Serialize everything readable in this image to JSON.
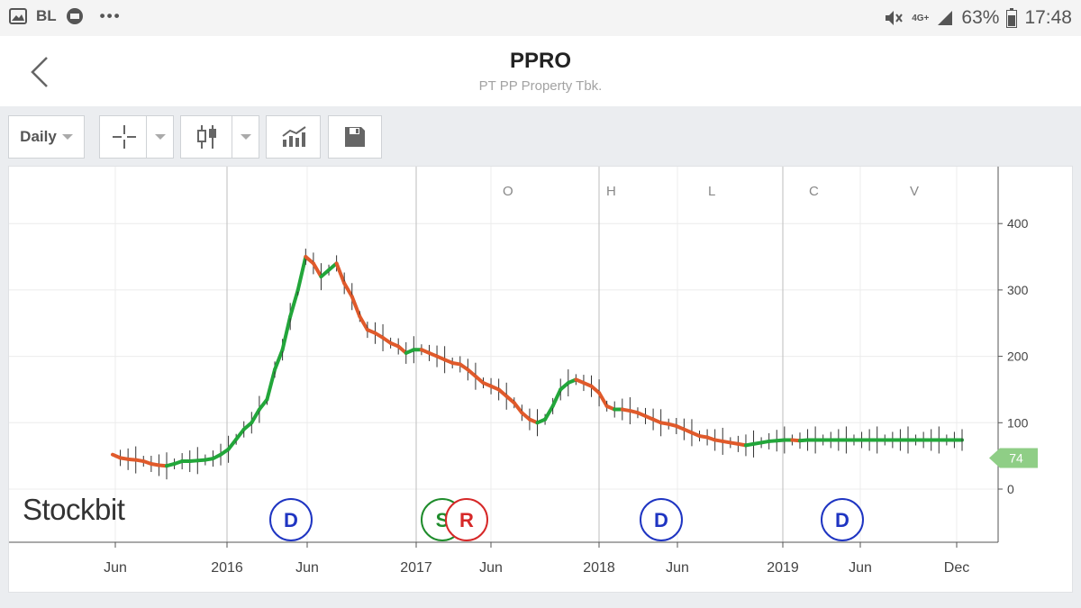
{
  "status_bar": {
    "carrier": "BL",
    "dots": "•••",
    "network": "4G+",
    "battery": "63%",
    "time": "17:48",
    "icons": [
      "gallery-icon",
      "message-icon",
      "mute-icon",
      "signal-icon",
      "battery-icon"
    ]
  },
  "header": {
    "ticker": "PPRO",
    "company": "PT PP Property Tbk.",
    "back_icon": "chevron-left-icon"
  },
  "toolbar": {
    "timeframe": "Daily",
    "crosshair_icon": "crosshair-icon",
    "candle_icon": "candlestick-icon",
    "indicator_icon": "indicator-chart-icon",
    "save_icon": "floppy-disk-icon"
  },
  "logo": "Stockbit",
  "chart_data": {
    "type": "line",
    "ohlcv_labels": [
      "O",
      "H",
      "L",
      "C",
      "V"
    ],
    "ylim": [
      -80,
      480
    ],
    "yticks": [
      0,
      100,
      200,
      300,
      400
    ],
    "xticks": [
      "Jun",
      "2016",
      "Jun",
      "2017",
      "Jun",
      "2018",
      "Jun",
      "2019",
      "Jun",
      "Dec"
    ],
    "last_price": "74",
    "colors": {
      "up": "#22a63a",
      "down": "#e05a2b",
      "badge": "#8fce86"
    },
    "series": [
      {
        "x": [
          0.0,
          0.5,
          1.0,
          1.5,
          2.0,
          2.5,
          3.0,
          3.5,
          4.0,
          4.5,
          5.0,
          5.5,
          6.0,
          6.5,
          7.0,
          7.5,
          8.0,
          8.5,
          9.0,
          9.5,
          10.0,
          10.5,
          11.0,
          11.5,
          12.0,
          12.5,
          13.0,
          13.5,
          14.0,
          14.5,
          15.0,
          15.5,
          16.0,
          16.5,
          17.0,
          17.5,
          18.0,
          18.5,
          19.0,
          19.5,
          20.0,
          20.5,
          21.0,
          21.5,
          22.0,
          22.5,
          23.0,
          23.5,
          24.0,
          24.5,
          25.0,
          25.5,
          26.0,
          26.5,
          27.0,
          27.5,
          28.0,
          28.5,
          29.0,
          29.5,
          30.0,
          30.5,
          31.0,
          31.5,
          32.0,
          32.5,
          33.0,
          33.5,
          34.0,
          34.5,
          35.0,
          35.5,
          36.0,
          36.5,
          37.0,
          37.5,
          38.0,
          38.5,
          39.0,
          39.5,
          40.0,
          40.5,
          41.0,
          41.5,
          42.0,
          42.5,
          43.0,
          43.5,
          44.0,
          44.5,
          45.0,
          45.5,
          46.0,
          46.5,
          47.0,
          47.5,
          48.0,
          48.5,
          49.0,
          49.5,
          50.0,
          50.5,
          51.0,
          51.5,
          52.0,
          52.5,
          53.0,
          53.5,
          54.0,
          54.5,
          55.0
        ],
        "values": [
          52,
          47,
          45,
          44,
          42,
          38,
          36,
          35,
          38,
          42,
          42,
          43,
          44,
          46,
          52,
          60,
          75,
          90,
          100,
          120,
          135,
          180,
          210,
          260,
          300,
          350,
          340,
          320,
          330,
          340,
          310,
          290,
          260,
          240,
          235,
          228,
          220,
          215,
          205,
          210,
          210,
          205,
          200,
          195,
          190,
          188,
          180,
          170,
          160,
          155,
          150,
          140,
          130,
          115,
          105,
          100,
          105,
          125,
          150,
          160,
          165,
          160,
          155,
          145,
          125,
          120,
          120,
          118,
          115,
          110,
          105,
          100,
          98,
          95,
          90,
          85,
          80,
          78,
          74,
          72,
          70,
          68,
          66,
          68,
          70,
          72,
          73,
          74,
          74,
          73,
          74,
          74,
          74,
          74,
          74,
          74,
          74,
          74,
          74,
          74,
          74,
          74,
          74,
          74,
          74,
          74,
          74,
          74,
          74,
          74,
          74
        ]
      }
    ],
    "events": [
      {
        "label": "D",
        "color": "#1f35c2"
      },
      {
        "label": "S",
        "color": "#1f8c2c"
      },
      {
        "label": "R",
        "color": "#d62828"
      },
      {
        "label": "D",
        "color": "#1f35c2"
      },
      {
        "label": "D",
        "color": "#1f35c2"
      }
    ]
  }
}
